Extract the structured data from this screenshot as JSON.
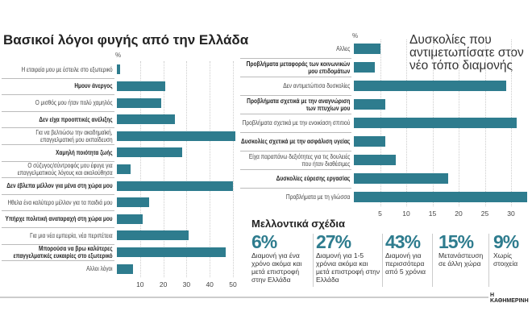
{
  "chart_data": [
    {
      "type": "bar",
      "orientation": "horizontal",
      "title": "Βασικοί λόγοι φυγής από την Ελλάδα",
      "unit_label": "%",
      "xlim": [
        0,
        50
      ],
      "ticks": [
        10,
        20,
        30,
        40,
        50
      ],
      "grid": true,
      "categories": [
        "Η εταιρεία μου με έστειλε στο εξωτερικό",
        "Ημουν άνεργος",
        "Ο μισθός μου ήταν πολύ χαμηλός",
        "Δεν είχα προοπτικές ανέλιξης",
        "Για να βελτιώσω την ακαδημαϊκή, επαγγελματική μου εκπαίδευση",
        "Χαμηλή ποιότητα ζωής",
        "Ο σύζυγος/σύντροφός μου έφυγε για επαγγελματικούς λόγους και ακολούθησα",
        "Δεν έβλεπα μέλλον για μένα στη χώρα μου",
        "Ηθελα ένα καλύτερο μέλλον για τα παιδιά μου",
        "Υπήρχε πολιτική αναταραχή στη χώρα μου",
        "Για μια νέα εμπειρία, νέα περιπέτεια",
        "Μπορούσα να βρω καλύτερες επαγγελματικές ευκαιρίες στο εξωτερικό",
        "Αλλοι λόγοι"
      ],
      "values": [
        1.5,
        21,
        19,
        25,
        51,
        28,
        6,
        50,
        14,
        11,
        31,
        47,
        7
      ],
      "bold": [
        false,
        true,
        false,
        true,
        false,
        true,
        false,
        true,
        false,
        true,
        false,
        true,
        false
      ]
    },
    {
      "type": "bar",
      "orientation": "horizontal",
      "title": "Δυσκολίες που αντιμετωπίσατε στον νέο τόπο διαμονής",
      "unit_label": "%",
      "xlim": [
        0,
        33
      ],
      "ticks": [
        5,
        10,
        15,
        20,
        25,
        30
      ],
      "grid": true,
      "categories": [
        "Αλλες",
        "Προβλήματα μεταφοράς των κοινωνικών μου επιδομάτων",
        "Δεν αντιμετώπισα δυσκολίες",
        "Προβλήματα σχετικά με την αναγνώριση των πτυχίων μου",
        "Προβλήματα σχετικά με την ενοικίαση σπιτιού",
        "Δυσκολίες σχετικά με την ασφάλιση υγείας",
        "Είχα παραπάνω δεξιότητες για τις δουλειές που ήταν διαθέσιμες",
        "Δυσκολίες εύρεσης εργασίας",
        "Προβλήματα με τη γλώσσα"
      ],
      "values": [
        5,
        4,
        29,
        6,
        31,
        6,
        8,
        18,
        33
      ],
      "bold": [
        false,
        true,
        false,
        true,
        false,
        true,
        false,
        true,
        false
      ]
    }
  ],
  "plans": {
    "title": "Μελλοντικά σχέδια",
    "items": [
      {
        "value": "6%",
        "desc": "Διαμονή για ένα χρόνο ακόμα και μετά επιστροφή στην Ελλάδα"
      },
      {
        "value": "27%",
        "desc": "Διαμονή για 1-5 χρόνια ακόμα και μετά επιστροφή στην Ελλάδα"
      },
      {
        "value": "43%",
        "desc": "Διαμονή για περισσότερα από 5 χρόνια"
      },
      {
        "value": "15%",
        "desc": "Μετανάστευση σε άλλη χώρα"
      },
      {
        "value": "9%",
        "desc": "Χωρίς στοιχεία"
      }
    ]
  },
  "source": "Η ΚΑΘΗΜΕΡΙΝΗ",
  "colors": {
    "bar": "#2e7c8e"
  }
}
